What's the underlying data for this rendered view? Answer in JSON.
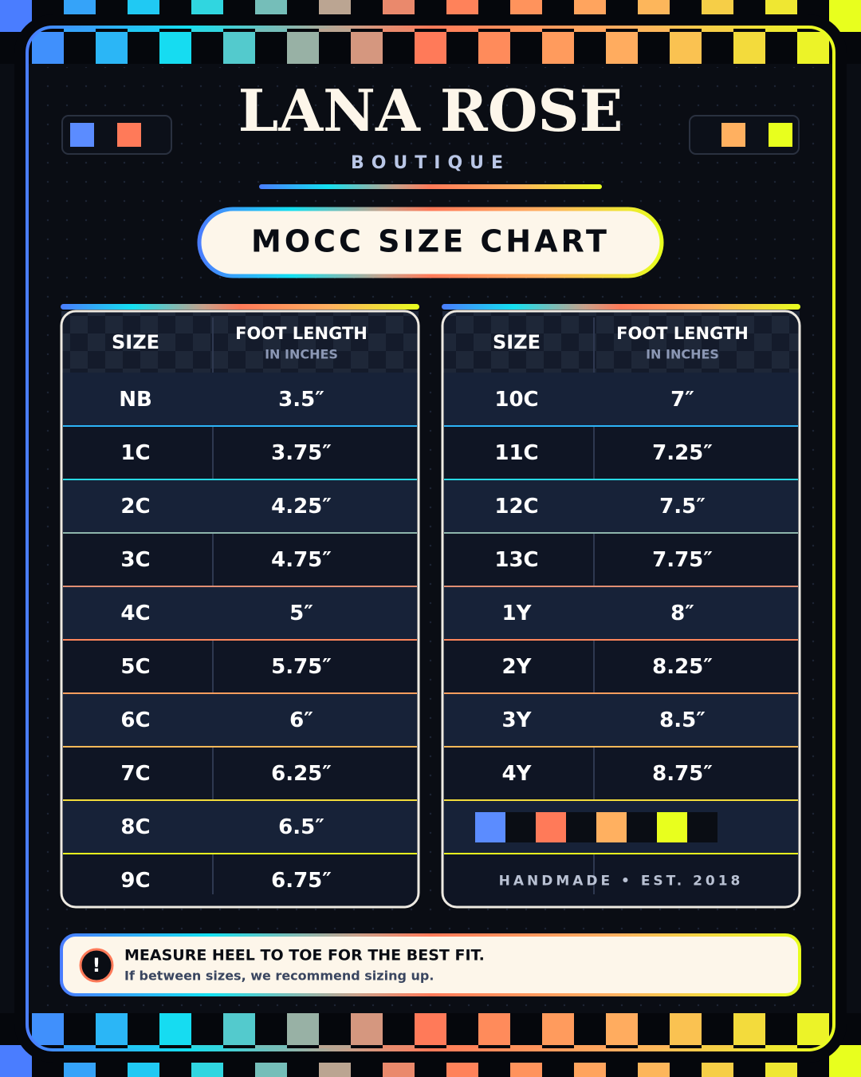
{
  "header": {
    "title": "LANA ROSE",
    "subtitle": "BOUTIQUE"
  },
  "banner": "MOCC SIZE CHART",
  "tables": [
    {
      "columns": [
        "SIZE",
        "FOOT LENGTH"
      ],
      "unit": "IN INCHES",
      "rows": [
        [
          "NB",
          "3.5″"
        ],
        [
          "1C",
          "3.75″"
        ],
        [
          "2C",
          "4.25″"
        ],
        [
          "3C",
          "4.75″"
        ],
        [
          "4C",
          "5″"
        ],
        [
          "5C",
          "5.75″"
        ],
        [
          "6C",
          "6″"
        ],
        [
          "7C",
          "6.25″"
        ],
        [
          "8C",
          "6.5″"
        ],
        [
          "9C",
          "6.75″"
        ]
      ]
    },
    {
      "columns": [
        "SIZE",
        "FOOT LENGTH"
      ],
      "unit": "IN INCHES",
      "rows": [
        [
          "10C",
          "7″"
        ],
        [
          "11C",
          "7.25″"
        ],
        [
          "12C",
          "7.5″"
        ],
        [
          "13C",
          "7.75″"
        ],
        [
          "1Y",
          "8″"
        ],
        [
          "2Y",
          "8.25″"
        ],
        [
          "3Y",
          "8.5″"
        ],
        [
          "4Y",
          "8.75″"
        ]
      ]
    }
  ],
  "tagline": "HANDMADE • EST. 2018",
  "notice": {
    "icon": "!",
    "title": "MEASURE HEEL TO TOE FOR THE BEST FIT.",
    "text": "If between sizes, we recommend sizing up."
  }
}
